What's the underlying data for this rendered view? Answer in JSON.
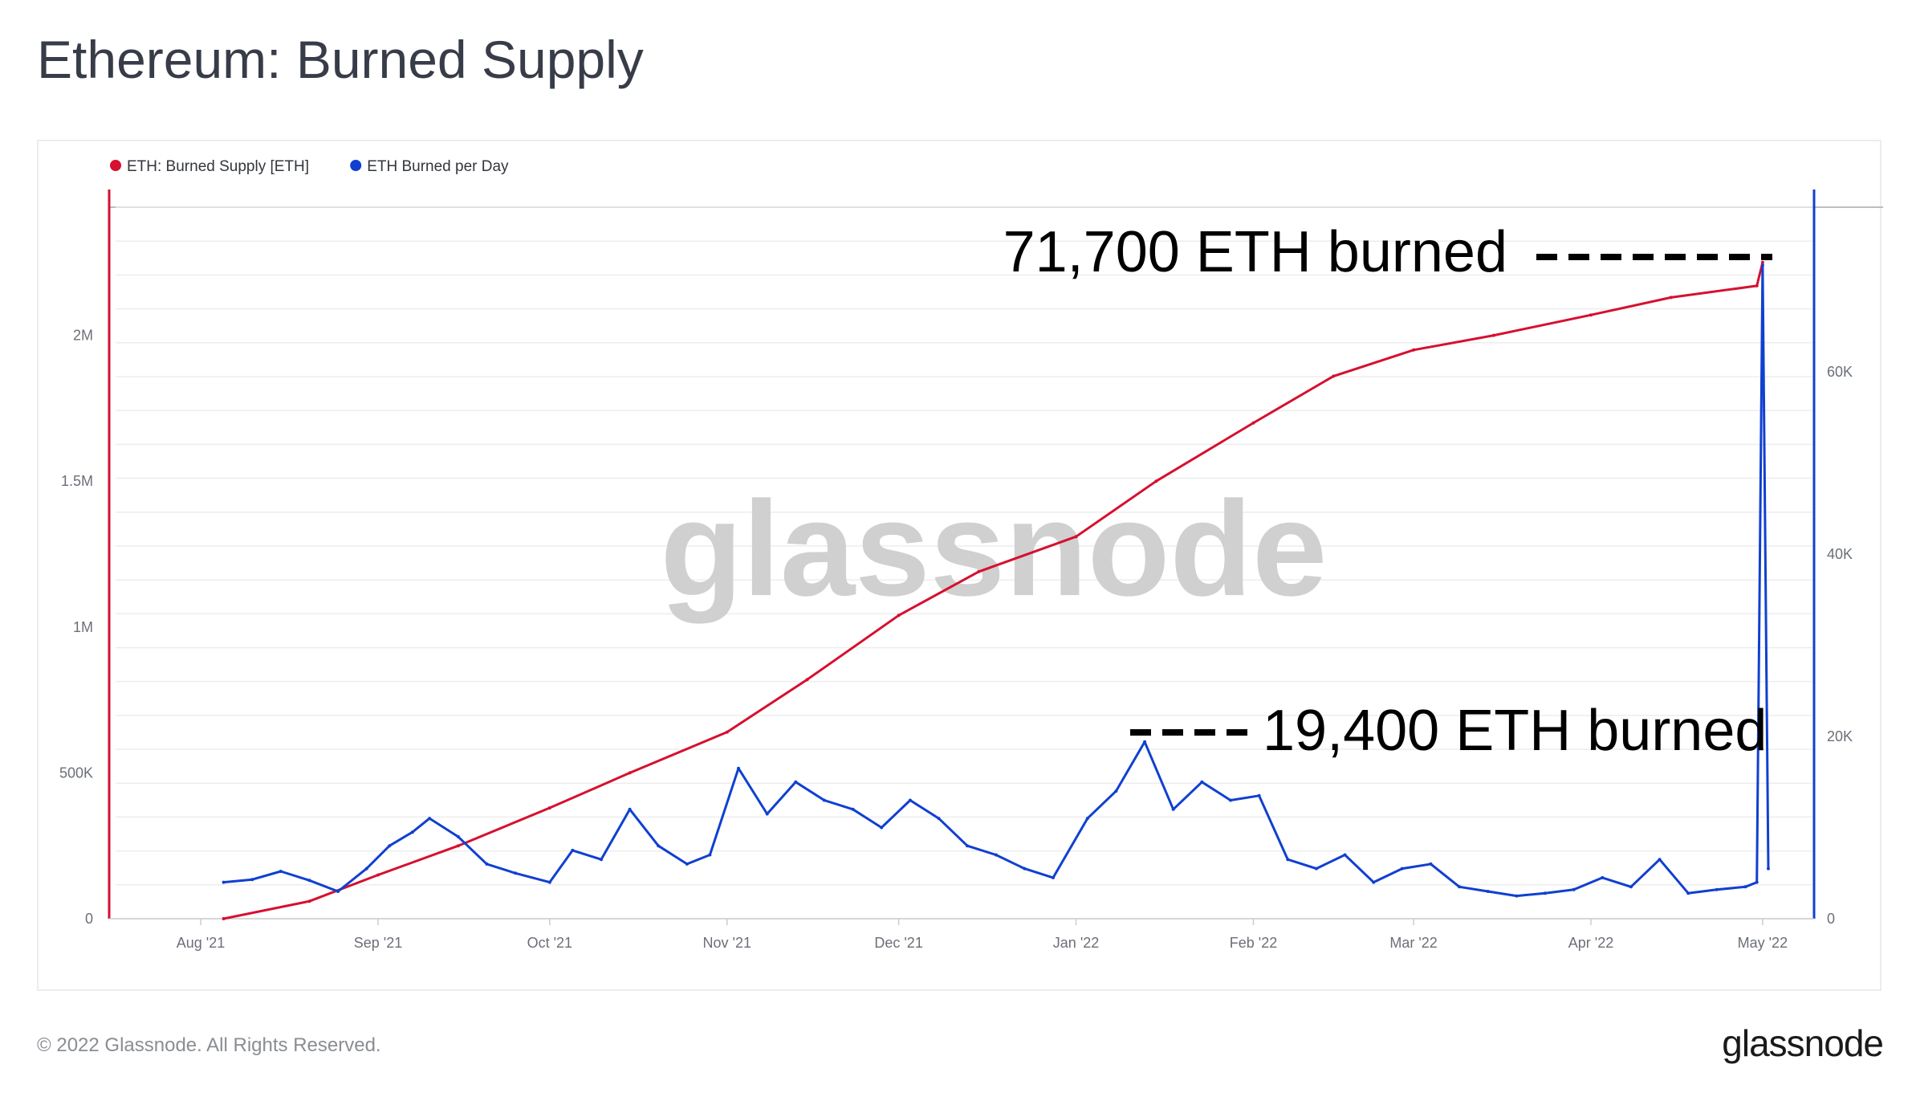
{
  "page": {
    "title": "Ethereum: Burned Supply",
    "copyright": "© 2022 Glassnode. All Rights Reserved.",
    "brand": "glassnode"
  },
  "chart_data": {
    "type": "line",
    "watermark": "glassnode",
    "legend_position": "top-left",
    "grid": true,
    "x_ticks": [
      "Aug '21",
      "Sep '21",
      "Oct '21",
      "Nov '21",
      "Dec '21",
      "Jan '22",
      "Feb '22",
      "Mar '22",
      "Apr '22",
      "May '22"
    ],
    "y_left": {
      "ticks": [
        "0",
        "500K",
        "1M",
        "1.5M",
        "2M"
      ],
      "tick_values": [
        0,
        500000,
        1000000,
        1500000,
        2000000
      ],
      "range": [
        0,
        2500000
      ],
      "color": "#d6102f"
    },
    "y_right": {
      "ticks": [
        "0",
        "20K",
        "40K",
        "60K"
      ],
      "tick_values": [
        0,
        20000,
        40000,
        60000
      ],
      "range": [
        0,
        80000
      ],
      "color": "#1040d0"
    },
    "series": [
      {
        "name": "ETH: Burned Supply [ETH]",
        "color": "#d6102f",
        "axis": "left",
        "x": [
          "2021-08-05",
          "2021-08-20",
          "2021-09-01",
          "2021-09-15",
          "2021-10-01",
          "2021-10-15",
          "2021-11-01",
          "2021-11-15",
          "2021-12-01",
          "2021-12-15",
          "2022-01-01",
          "2022-01-15",
          "2022-02-01",
          "2022-02-15",
          "2022-03-01",
          "2022-03-15",
          "2022-04-01",
          "2022-04-15",
          "2022-04-30",
          "2022-05-01"
        ],
        "y": [
          0,
          60000,
          150000,
          250000,
          380000,
          500000,
          640000,
          820000,
          1040000,
          1190000,
          1310000,
          1500000,
          1700000,
          1860000,
          1950000,
          2000000,
          2070000,
          2130000,
          2170000,
          2250000
        ]
      },
      {
        "name": "ETH Burned per Day",
        "color": "#1040d0",
        "axis": "right",
        "x": [
          "2021-08-05",
          "2021-08-10",
          "2021-08-15",
          "2021-08-20",
          "2021-08-25",
          "2021-08-30",
          "2021-09-03",
          "2021-09-07",
          "2021-09-10",
          "2021-09-15",
          "2021-09-20",
          "2021-09-25",
          "2021-10-01",
          "2021-10-05",
          "2021-10-10",
          "2021-10-15",
          "2021-10-20",
          "2021-10-25",
          "2021-10-29",
          "2021-11-03",
          "2021-11-08",
          "2021-11-13",
          "2021-11-18",
          "2021-11-23",
          "2021-11-28",
          "2021-12-03",
          "2021-12-08",
          "2021-12-13",
          "2021-12-18",
          "2021-12-23",
          "2021-12-28",
          "2022-01-03",
          "2022-01-08",
          "2022-01-13",
          "2022-01-18",
          "2022-01-23",
          "2022-01-28",
          "2022-02-02",
          "2022-02-07",
          "2022-02-12",
          "2022-02-17",
          "2022-02-22",
          "2022-02-27",
          "2022-03-04",
          "2022-03-09",
          "2022-03-14",
          "2022-03-19",
          "2022-03-24",
          "2022-03-29",
          "2022-04-03",
          "2022-04-08",
          "2022-04-13",
          "2022-04-18",
          "2022-04-23",
          "2022-04-28",
          "2022-04-30",
          "2022-05-01",
          "2022-05-02"
        ],
        "y": [
          4000,
          4300,
          5200,
          4200,
          3000,
          5500,
          8000,
          9500,
          11000,
          9000,
          6000,
          5000,
          4000,
          7500,
          6500,
          12000,
          8000,
          6000,
          7000,
          16500,
          11500,
          15000,
          13000,
          12000,
          10000,
          13000,
          11000,
          8000,
          7000,
          5500,
          4500,
          11000,
          14000,
          19400,
          12000,
          15000,
          13000,
          13500,
          6500,
          5500,
          7000,
          4000,
          5500,
          6000,
          3500,
          3000,
          2500,
          2800,
          3200,
          4500,
          3500,
          6500,
          2800,
          3200,
          3500,
          4000,
          71700,
          5500
        ]
      }
    ],
    "annotations": [
      "71,700 ETH burned",
      "19,400 ETH burned"
    ]
  }
}
